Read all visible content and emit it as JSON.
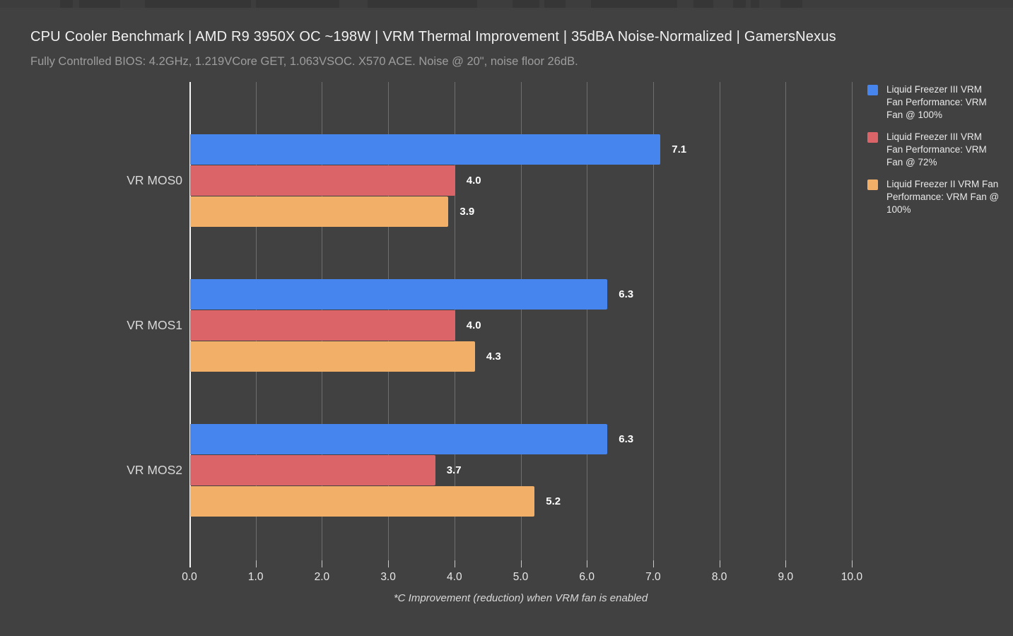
{
  "chart_data": {
    "type": "bar",
    "orientation": "horizontal",
    "title": "CPU Cooler Benchmark | AMD R9 3950X OC ~198W | VRM Thermal Improvement | 35dBA Noise-Normalized | GamersNexus",
    "subtitle": "Fully Controlled BIOS: 4.2GHz, 1.219VCore GET, 1.063VSOC. X570 ACE. Noise @ 20\", noise floor 26dB.",
    "categories": [
      "VR MOS0",
      "VR MOS1",
      "VR MOS2"
    ],
    "series": [
      {
        "name": "Liquid Freezer III VRM Fan Performance: VRM Fan @ 100%",
        "color": "#4684ee",
        "values": [
          7.1,
          6.3,
          6.3
        ]
      },
      {
        "name": "Liquid Freezer III VRM Fan Performance: VRM Fan @ 72%",
        "color": "#da6467",
        "values": [
          4.0,
          4.0,
          3.7
        ]
      },
      {
        "name": "Liquid Freezer II VRM Fan Performance: VRM Fan @ 100%",
        "color": "#f2af68",
        "values": [
          3.9,
          4.3,
          5.2
        ]
      }
    ],
    "xlabel": "*C Improvement (reduction) when VRM fan is enabled",
    "x_ticks": [
      "0.0",
      "1.0",
      "2.0",
      "3.0",
      "4.0",
      "5.0",
      "6.0",
      "7.0",
      "8.0",
      "9.0",
      "10.0"
    ],
    "xlim": [
      0,
      10
    ],
    "grid": true,
    "legend_position": "right",
    "value_label_decimals": 1
  },
  "colors": {
    "background": "#414141",
    "gridline": "#6f6f6f",
    "zero_line": "#f5f5f5",
    "title_text": "#f1f1f1",
    "subtitle_text": "#9d9d9d",
    "category_text": "#d9d9d9",
    "value_text": "#ffffff",
    "tick_text": "#e8e8e8",
    "legend_text": "#e9e9e9"
  }
}
